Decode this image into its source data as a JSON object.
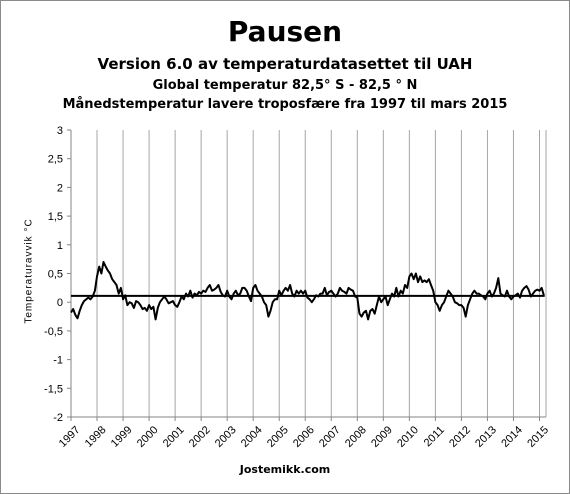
{
  "chart_data": {
    "type": "line",
    "title": "Pausen",
    "subtitles": [
      "Version 6.0 av temperaturdatasettet til UAH",
      "Global temperatur 82,5° S - 82,5 ° N",
      "Månedstemperatur lavere troposfære fra 1997 til mars 2015"
    ],
    "ylabel": "Temperaturavvik °C",
    "xlabel": "Jostemikk.com",
    "ylim": [
      -2,
      3
    ],
    "yticks": [
      "3",
      "2,5",
      "2",
      "1,5",
      "1",
      "0,5",
      "0",
      "-0,5",
      "-1",
      "-1,5",
      "-2"
    ],
    "ytick_values": [
      3,
      2.5,
      2,
      1.5,
      1,
      0.5,
      0,
      -0.5,
      -1,
      -1.5,
      -2
    ],
    "xlim": [
      1997,
      2015.25
    ],
    "xticks": [
      "1997",
      "1998",
      "1999",
      "2000",
      "2001",
      "2002",
      "2003",
      "2004",
      "2005",
      "2006",
      "2007",
      "2008",
      "2009",
      "2010",
      "2011",
      "2012",
      "2013",
      "2014",
      "2015"
    ],
    "grid": "vertical",
    "trend": {
      "x": [
        1997.0,
        2015.2
      ],
      "y": [
        0.11,
        0.11
      ]
    },
    "series": [
      {
        "x_start": 1997.0,
        "step_months": 1,
        "values": [
          -0.18,
          -0.12,
          -0.22,
          -0.28,
          -0.15,
          -0.05,
          0.02,
          0.05,
          0.08,
          0.05,
          0.1,
          0.2,
          0.45,
          0.62,
          0.5,
          0.7,
          0.62,
          0.55,
          0.5,
          0.4,
          0.35,
          0.3,
          0.15,
          0.25,
          0.05,
          0.12,
          -0.05,
          0.0,
          -0.02,
          -0.1,
          0.02,
          0.0,
          -0.05,
          -0.12,
          -0.1,
          -0.15,
          -0.05,
          -0.12,
          -0.08,
          -0.3,
          -0.1,
          0.0,
          0.05,
          0.1,
          0.05,
          -0.02,
          0.0,
          0.02,
          -0.05,
          -0.08,
          0.0,
          0.1,
          0.05,
          0.15,
          0.1,
          0.2,
          0.08,
          0.15,
          0.12,
          0.18,
          0.15,
          0.2,
          0.18,
          0.25,
          0.3,
          0.2,
          0.22,
          0.25,
          0.3,
          0.18,
          0.12,
          0.1,
          0.2,
          0.1,
          0.05,
          0.15,
          0.2,
          0.12,
          0.15,
          0.25,
          0.25,
          0.2,
          0.1,
          0.02,
          0.25,
          0.3,
          0.2,
          0.15,
          0.1,
          0.0,
          -0.05,
          -0.25,
          -0.15,
          0.0,
          0.05,
          0.05,
          0.2,
          0.12,
          0.2,
          0.25,
          0.2,
          0.3,
          0.15,
          0.1,
          0.2,
          0.15,
          0.2,
          0.15,
          0.2,
          0.08,
          0.05,
          0.0,
          0.05,
          0.12,
          0.1,
          0.15,
          0.15,
          0.25,
          0.12,
          0.18,
          0.2,
          0.15,
          0.1,
          0.15,
          0.25,
          0.2,
          0.18,
          0.15,
          0.25,
          0.22,
          0.2,
          0.1,
          0.08,
          -0.2,
          -0.25,
          -0.18,
          -0.15,
          -0.3,
          -0.15,
          -0.12,
          -0.2,
          -0.05,
          0.1,
          0.0,
          0.05,
          0.1,
          -0.05,
          0.05,
          0.15,
          0.1,
          0.25,
          0.1,
          0.2,
          0.15,
          0.3,
          0.25,
          0.45,
          0.5,
          0.4,
          0.5,
          0.35,
          0.45,
          0.35,
          0.38,
          0.35,
          0.4,
          0.3,
          0.2,
          0.0,
          -0.05,
          -0.15,
          -0.05,
          0.0,
          0.1,
          0.2,
          0.15,
          0.1,
          0.0,
          -0.02,
          -0.05,
          -0.05,
          -0.1,
          -0.25,
          -0.05,
          0.05,
          0.15,
          0.2,
          0.15,
          0.15,
          0.12,
          0.1,
          0.05,
          0.15,
          0.2,
          0.1,
          0.15,
          0.25,
          0.42,
          0.15,
          0.12,
          0.1,
          0.2,
          0.1,
          0.05,
          0.1,
          0.12,
          0.15,
          0.08,
          0.2,
          0.25,
          0.28,
          0.22,
          0.1,
          0.15,
          0.2,
          0.22,
          0.2,
          0.25,
          0.12
        ]
      }
    ],
    "colors": {
      "line": "#000000",
      "trend": "#000000",
      "grid": "#a6a6a6",
      "background": "#ffffff"
    }
  }
}
